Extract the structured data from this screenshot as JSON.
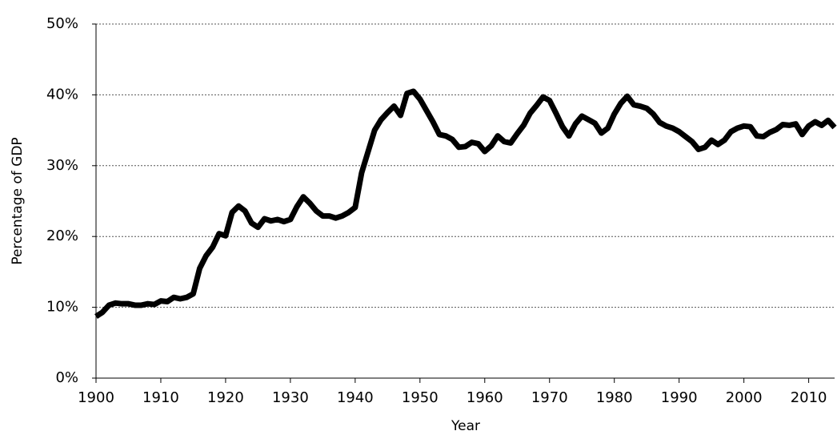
{
  "chart_data": {
    "type": "line",
    "xlabel": "Year",
    "ylabel": "Percentage of GDP",
    "x": [
      1900,
      1901,
      1902,
      1903,
      1904,
      1905,
      1906,
      1907,
      1908,
      1909,
      1910,
      1911,
      1912,
      1913,
      1914,
      1915,
      1916,
      1917,
      1918,
      1919,
      1920,
      1921,
      1922,
      1923,
      1924,
      1925,
      1926,
      1927,
      1928,
      1929,
      1930,
      1931,
      1932,
      1933,
      1934,
      1935,
      1936,
      1937,
      1938,
      1939,
      1940,
      1941,
      1942,
      1943,
      1944,
      1945,
      1946,
      1947,
      1948,
      1949,
      1950,
      1951,
      1952,
      1953,
      1954,
      1955,
      1956,
      1957,
      1958,
      1959,
      1960,
      1961,
      1962,
      1963,
      1964,
      1965,
      1966,
      1967,
      1968,
      1969,
      1970,
      1971,
      1972,
      1973,
      1974,
      1975,
      1976,
      1977,
      1978,
      1979,
      1980,
      1981,
      1982,
      1983,
      1984,
      1985,
      1986,
      1987,
      1988,
      1989,
      1990,
      1991,
      1992,
      1993,
      1994,
      1995,
      1996,
      1997,
      1998,
      1999,
      2000,
      2001,
      2002,
      2003,
      2004,
      2005,
      2006,
      2007,
      2008,
      2009,
      2010,
      2011,
      2012,
      2013,
      2014
    ],
    "values": [
      8.7,
      9.3,
      10.3,
      10.6,
      10.5,
      10.5,
      10.3,
      10.3,
      10.5,
      10.4,
      10.9,
      10.8,
      11.4,
      11.2,
      11.4,
      11.9,
      15.5,
      17.3,
      18.5,
      20.4,
      20.1,
      23.4,
      24.3,
      23.6,
      21.9,
      21.3,
      22.5,
      22.2,
      22.4,
      22.1,
      22.4,
      24.2,
      25.6,
      24.7,
      23.6,
      22.9,
      22.9,
      22.6,
      22.9,
      23.4,
      24.1,
      29.0,
      32.0,
      35.0,
      36.5,
      37.5,
      38.4,
      37.1,
      40.2,
      40.5,
      39.4,
      37.8,
      36.2,
      34.4,
      34.2,
      33.7,
      32.6,
      32.7,
      33.3,
      33.1,
      32.0,
      32.8,
      34.2,
      33.4,
      33.2,
      34.5,
      35.7,
      37.4,
      38.5,
      39.7,
      39.2,
      37.4,
      35.5,
      34.2,
      35.9,
      37.0,
      36.5,
      36.0,
      34.6,
      35.3,
      37.3,
      38.8,
      39.8,
      38.6,
      38.4,
      38.1,
      37.3,
      36.1,
      35.6,
      35.3,
      34.8,
      34.1,
      33.4,
      32.3,
      32.6,
      33.6,
      33.0,
      33.6,
      34.8,
      35.3,
      35.6,
      35.5,
      34.2,
      34.1,
      34.7,
      35.1,
      35.8,
      35.7,
      35.9,
      34.4,
      35.6,
      36.2,
      35.7,
      36.4,
      35.4
    ],
    "color": "#000000",
    "xlim": [
      1900,
      2014
    ],
    "xticks": [
      1900,
      1910,
      1920,
      1930,
      1940,
      1950,
      1960,
      1970,
      1980,
      1990,
      2000,
      2010
    ],
    "ylim": [
      0,
      50
    ],
    "yticks": [
      {
        "value": 0,
        "label": "0%"
      },
      {
        "value": 10,
        "label": "10%"
      },
      {
        "value": 20,
        "label": "20%"
      },
      {
        "value": 30,
        "label": "30%"
      },
      {
        "value": 40,
        "label": "40%"
      },
      {
        "value": 50,
        "label": "50%"
      }
    ],
    "grid": true
  }
}
